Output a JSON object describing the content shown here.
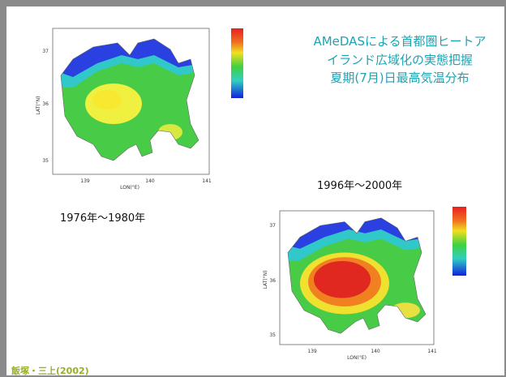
{
  "title_lines": [
    "AMeDASによる首都圏ヒートア",
    "イランド広域化の実態把握",
    "夏期(7月)日最高気温分布"
  ],
  "maps": [
    {
      "period": "1976年～1980年",
      "y_label": "LAT(°N)",
      "x_label": "LON(°E)",
      "y_ticks": [
        "37",
        "36",
        "35"
      ],
      "x_ticks": [
        "139",
        "140",
        "141"
      ]
    },
    {
      "period": "1996年～2000年",
      "y_label": "LAT(°N)",
      "x_label": "LON(°E)",
      "y_ticks": [
        "37",
        "36",
        "35"
      ],
      "x_ticks": [
        "139",
        "140",
        "141"
      ]
    }
  ],
  "citation": "飯塚・三上(2002)"
}
